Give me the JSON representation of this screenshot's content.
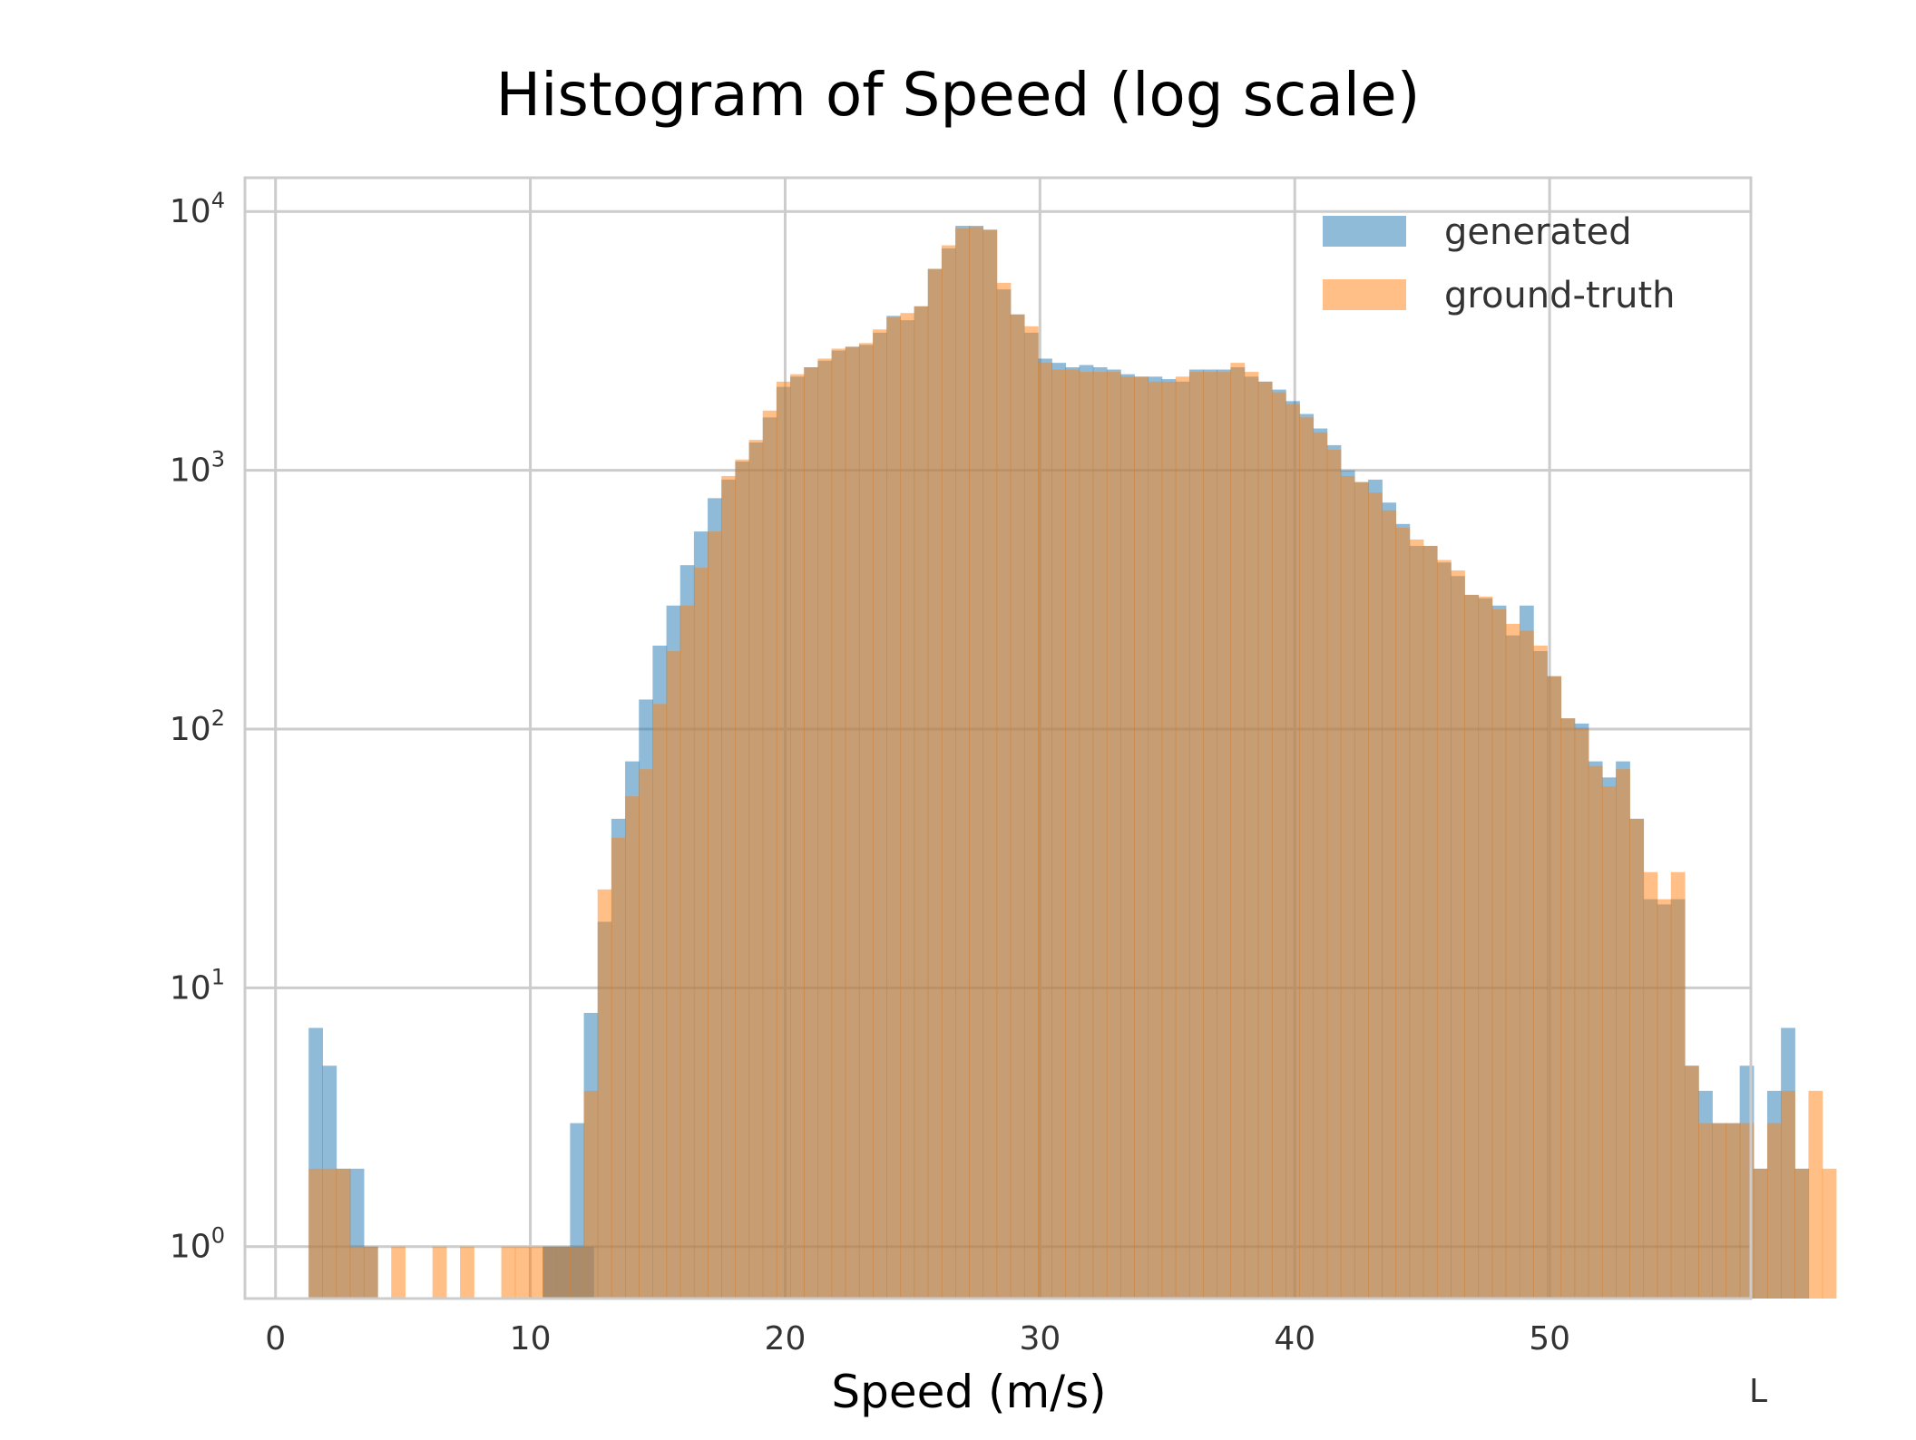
{
  "chart_data": {
    "type": "histogram",
    "title": "Histogram of Speed (log scale)",
    "xlabel": "Speed (m/s)",
    "ylabel": "",
    "xlim": [
      -1.2,
      57.9
    ],
    "ylim": [
      0.63,
      13500
    ],
    "yscale": "log",
    "grid": true,
    "legend_position": "top-right",
    "x_ticks": [
      0,
      10,
      20,
      30,
      40,
      50
    ],
    "y_ticks": [
      {
        "value": 1,
        "base": "10",
        "exp": "0"
      },
      {
        "value": 10,
        "base": "10",
        "exp": "1"
      },
      {
        "value": 100,
        "base": "10",
        "exp": "2"
      },
      {
        "value": 1000,
        "base": "10",
        "exp": "3"
      },
      {
        "value": 10000,
        "base": "10",
        "exp": "4"
      }
    ],
    "bin_start": 1.3,
    "bin_width": 0.54,
    "series": [
      {
        "name": "generated",
        "color": "#1f77b4",
        "opacity": 0.5,
        "values": [
          7,
          5,
          2,
          2,
          1,
          0,
          0,
          0,
          0,
          0,
          0,
          0,
          0,
          0,
          0,
          0,
          0,
          1,
          1,
          3,
          8,
          18,
          45,
          75,
          130,
          210,
          300,
          430,
          580,
          780,
          920,
          1080,
          1280,
          1600,
          2100,
          2300,
          2500,
          2650,
          2900,
          3000,
          3050,
          3400,
          3950,
          3800,
          4300,
          6000,
          7200,
          8800,
          8800,
          8500,
          5000,
          4000,
          3400,
          2700,
          2600,
          2500,
          2550,
          2500,
          2450,
          2350,
          2300,
          2300,
          2250,
          2200,
          2450,
          2450,
          2450,
          2500,
          2300,
          2200,
          2050,
          1850,
          1650,
          1450,
          1250,
          1000,
          900,
          920,
          750,
          620,
          510,
          510,
          440,
          390,
          330,
          320,
          300,
          230,
          300,
          200,
          160,
          110,
          105,
          75,
          65,
          75,
          45,
          22,
          21,
          22,
          5,
          4,
          3,
          3,
          5,
          2,
          4,
          7,
          2,
          0,
          0
        ],
        "gaps": [
          {
            "from": 10.5,
            "to": 12.5,
            "value": 1
          }
        ]
      },
      {
        "name": "ground-truth",
        "color": "#ff7f0e",
        "opacity": 0.5,
        "values": [
          2,
          2,
          2,
          1,
          1,
          0,
          1,
          0,
          0,
          1,
          0,
          1,
          0,
          0,
          1,
          1,
          1,
          1,
          1,
          1,
          4,
          24,
          38,
          55,
          70,
          125,
          200,
          300,
          420,
          580,
          950,
          1100,
          1310,
          1700,
          2200,
          2350,
          2500,
          2700,
          2950,
          3000,
          3100,
          3500,
          3900,
          4050,
          4300,
          6000,
          7400,
          8600,
          8700,
          8500,
          5300,
          4000,
          3600,
          2600,
          2450,
          2450,
          2400,
          2400,
          2400,
          2300,
          2300,
          2200,
          2200,
          2300,
          2400,
          2400,
          2400,
          2600,
          2400,
          2200,
          2000,
          1800,
          1600,
          1400,
          1200,
          950,
          900,
          820,
          700,
          600,
          540,
          510,
          450,
          410,
          330,
          325,
          290,
          255,
          240,
          210,
          160,
          110,
          100,
          72,
          60,
          70,
          45,
          28,
          22,
          28,
          5,
          3,
          3,
          3,
          3,
          2,
          3,
          4,
          2,
          4,
          2
        ]
      }
    ]
  },
  "legend": {
    "items": [
      {
        "label": "generated",
        "color": "#1f77b4"
      },
      {
        "label": "ground-truth",
        "color": "#ff7f0e"
      }
    ]
  },
  "stray_mark": "L"
}
